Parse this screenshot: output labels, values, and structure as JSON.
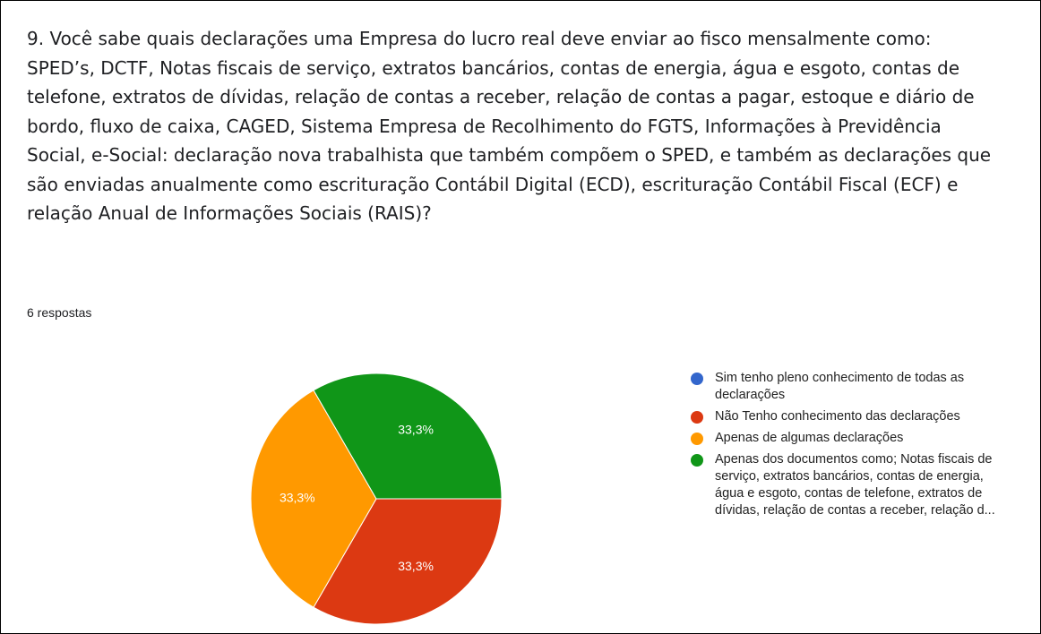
{
  "chart_data": {
    "type": "pie",
    "title": "9. Você sabe quais declarações uma Empresa do lucro real deve enviar ao fisco mensalmente como: SPED’s, DCTF, Notas fiscais de serviço, extratos bancários, contas de energia, água e esgoto, contas de telefone, extratos de dívidas, relação de contas a receber, relação de contas a pagar, estoque e diário de bordo, fluxo de caixa, CAGED, Sistema Empresa de Recolhimento do FGTS, Informações à Previdência Social, e-Social: declaração nova trabalhista que também compõem o SPED, e também as declarações que são enviadas anualmente como escrituração Contábil Digital (ECD), escrituração Contábil Fiscal (ECF) e relação Anual de Informações Sociais (RAIS)?",
    "subtitle": "6 respostas",
    "categories": [
      "Sim tenho pleno conhecimento de todas as declarações",
      "Não Tenho conhecimento das declarações",
      "Apenas de algumas declarações",
      "Apenas dos documentos como; Notas fiscais de serviço, extratos bancários, contas de energia, água e esgoto, contas de telefone, extratos de dívidas, relação de contas a receber, relação d..."
    ],
    "values": [
      0,
      33.3,
      33.3,
      33.3
    ],
    "value_labels": [
      null,
      "33,3%",
      "33,3%",
      "33,3%"
    ],
    "colors": [
      "#3366cc",
      "#dc3912",
      "#ff9900",
      "#109618"
    ],
    "legend": "right"
  }
}
